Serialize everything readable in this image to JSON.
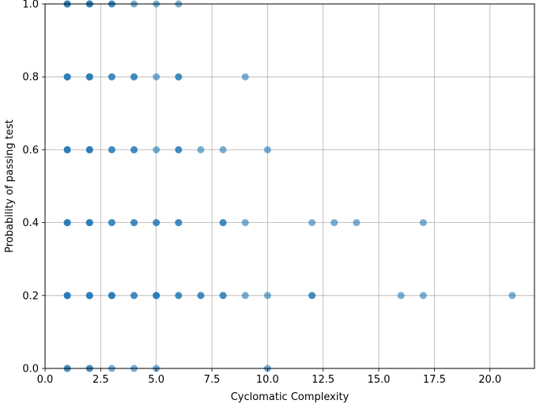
{
  "chart_data": {
    "type": "scatter",
    "title": "",
    "xlabel": "Cyclomatic Complexity",
    "ylabel": "Probability of passing test",
    "xlim": [
      0,
      22
    ],
    "ylim": [
      0,
      1.0
    ],
    "xticks": [
      "0.0",
      "2.5",
      "5.0",
      "7.5",
      "10.0",
      "12.5",
      "15.0",
      "17.5",
      "20.0"
    ],
    "yticks": [
      "0.0",
      "0.2",
      "0.4",
      "0.6",
      "0.8",
      "1.0"
    ],
    "grid": true,
    "marker_color": "#1f77b4",
    "marker_alpha": 0.6,
    "points": [
      {
        "x": 1,
        "y": 1.0
      },
      {
        "x": 1,
        "y": 1.0
      },
      {
        "x": 1,
        "y": 1.0
      },
      {
        "x": 2,
        "y": 1.0
      },
      {
        "x": 2,
        "y": 1.0
      },
      {
        "x": 2,
        "y": 1.0
      },
      {
        "x": 3,
        "y": 1.0
      },
      {
        "x": 3,
        "y": 1.0
      },
      {
        "x": 4,
        "y": 1.0
      },
      {
        "x": 5,
        "y": 1.0
      },
      {
        "x": 6,
        "y": 1.0
      },
      {
        "x": 1,
        "y": 0.8
      },
      {
        "x": 1,
        "y": 0.8
      },
      {
        "x": 1,
        "y": 0.8
      },
      {
        "x": 2,
        "y": 0.8
      },
      {
        "x": 2,
        "y": 0.8
      },
      {
        "x": 2,
        "y": 0.8
      },
      {
        "x": 3,
        "y": 0.8
      },
      {
        "x": 3,
        "y": 0.8
      },
      {
        "x": 4,
        "y": 0.8
      },
      {
        "x": 4,
        "y": 0.8
      },
      {
        "x": 5,
        "y": 0.8
      },
      {
        "x": 6,
        "y": 0.8
      },
      {
        "x": 6,
        "y": 0.8
      },
      {
        "x": 9,
        "y": 0.8
      },
      {
        "x": 1,
        "y": 0.6
      },
      {
        "x": 1,
        "y": 0.6
      },
      {
        "x": 1,
        "y": 0.6
      },
      {
        "x": 2,
        "y": 0.6
      },
      {
        "x": 2,
        "y": 0.6
      },
      {
        "x": 2,
        "y": 0.6
      },
      {
        "x": 3,
        "y": 0.6
      },
      {
        "x": 3,
        "y": 0.6
      },
      {
        "x": 4,
        "y": 0.6
      },
      {
        "x": 4,
        "y": 0.6
      },
      {
        "x": 5,
        "y": 0.6
      },
      {
        "x": 6,
        "y": 0.6
      },
      {
        "x": 6,
        "y": 0.6
      },
      {
        "x": 7,
        "y": 0.6
      },
      {
        "x": 8,
        "y": 0.6
      },
      {
        "x": 10,
        "y": 0.6
      },
      {
        "x": 1,
        "y": 0.4
      },
      {
        "x": 1,
        "y": 0.4
      },
      {
        "x": 1,
        "y": 0.4
      },
      {
        "x": 2,
        "y": 0.4
      },
      {
        "x": 2,
        "y": 0.4
      },
      {
        "x": 2,
        "y": 0.4
      },
      {
        "x": 3,
        "y": 0.4
      },
      {
        "x": 3,
        "y": 0.4
      },
      {
        "x": 4,
        "y": 0.4
      },
      {
        "x": 4,
        "y": 0.4
      },
      {
        "x": 5,
        "y": 0.4
      },
      {
        "x": 5,
        "y": 0.4
      },
      {
        "x": 6,
        "y": 0.4
      },
      {
        "x": 6,
        "y": 0.4
      },
      {
        "x": 8,
        "y": 0.4
      },
      {
        "x": 8,
        "y": 0.4
      },
      {
        "x": 9,
        "y": 0.4
      },
      {
        "x": 12,
        "y": 0.4
      },
      {
        "x": 13,
        "y": 0.4
      },
      {
        "x": 14,
        "y": 0.4
      },
      {
        "x": 17,
        "y": 0.4
      },
      {
        "x": 1,
        "y": 0.2
      },
      {
        "x": 1,
        "y": 0.2
      },
      {
        "x": 1,
        "y": 0.2
      },
      {
        "x": 2,
        "y": 0.2
      },
      {
        "x": 2,
        "y": 0.2
      },
      {
        "x": 2,
        "y": 0.2
      },
      {
        "x": 3,
        "y": 0.2
      },
      {
        "x": 3,
        "y": 0.2
      },
      {
        "x": 3,
        "y": 0.2
      },
      {
        "x": 4,
        "y": 0.2
      },
      {
        "x": 4,
        "y": 0.2
      },
      {
        "x": 5,
        "y": 0.2
      },
      {
        "x": 5,
        "y": 0.2
      },
      {
        "x": 5,
        "y": 0.2
      },
      {
        "x": 6,
        "y": 0.2
      },
      {
        "x": 6,
        "y": 0.2
      },
      {
        "x": 7,
        "y": 0.2
      },
      {
        "x": 7,
        "y": 0.2
      },
      {
        "x": 8,
        "y": 0.2
      },
      {
        "x": 8,
        "y": 0.2
      },
      {
        "x": 9,
        "y": 0.2
      },
      {
        "x": 10,
        "y": 0.2
      },
      {
        "x": 12,
        "y": 0.2
      },
      {
        "x": 12,
        "y": 0.2
      },
      {
        "x": 16,
        "y": 0.2
      },
      {
        "x": 17,
        "y": 0.2
      },
      {
        "x": 21,
        "y": 0.2
      },
      {
        "x": 1,
        "y": 0.0
      },
      {
        "x": 1,
        "y": 0.0
      },
      {
        "x": 2,
        "y": 0.0
      },
      {
        "x": 2,
        "y": 0.0
      },
      {
        "x": 3,
        "y": 0.0
      },
      {
        "x": 4,
        "y": 0.0
      },
      {
        "x": 5,
        "y": 0.0
      },
      {
        "x": 10,
        "y": 0.0
      }
    ]
  }
}
